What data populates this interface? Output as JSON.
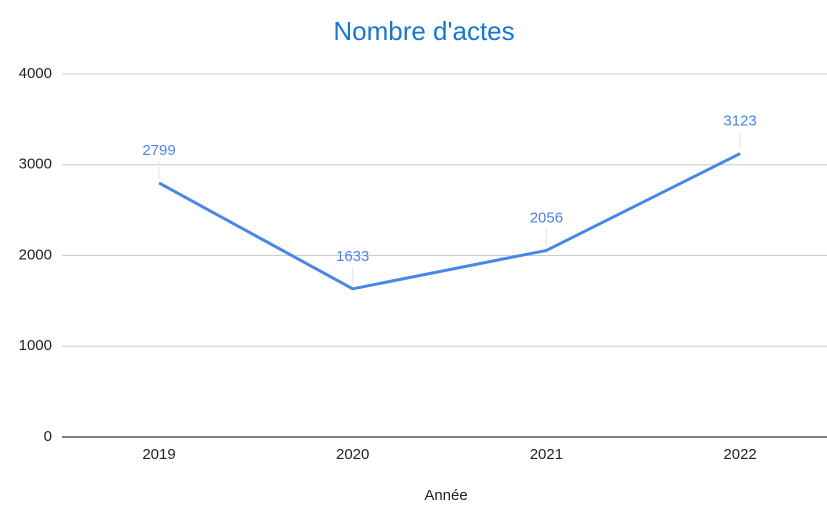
{
  "chart_data": {
    "type": "line",
    "title": "Nombre d'actes",
    "x_label": "Année",
    "categories": [
      "2019",
      "2020",
      "2021",
      "2022"
    ],
    "series": [
      {
        "name": "Nombre d'actes",
        "color": "#4a86e8",
        "values": [
          2799,
          1633,
          2056,
          3123
        ]
      }
    ],
    "ylim": [
      0,
      4000
    ],
    "yticks": [
      0,
      1000,
      2000,
      3000,
      4000
    ],
    "grid": true,
    "data_labels": true
  }
}
